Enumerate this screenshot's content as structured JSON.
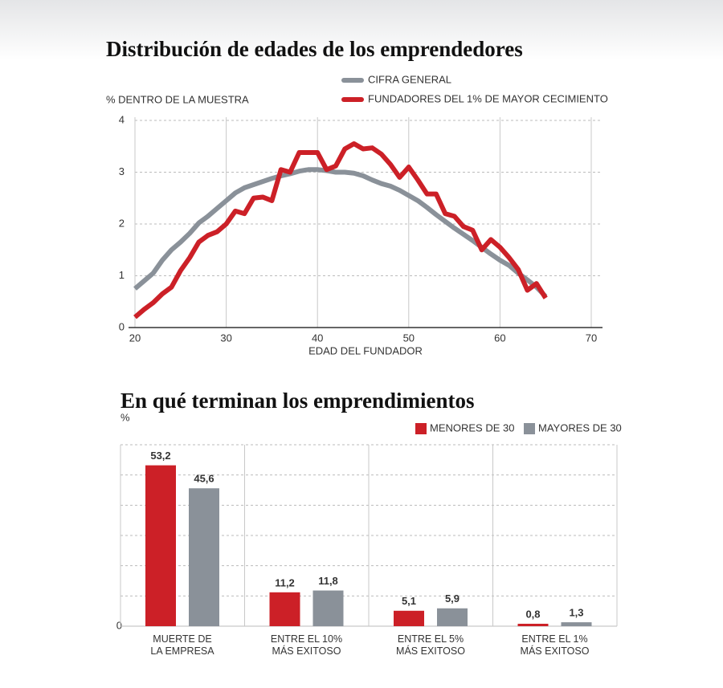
{
  "chart_data": [
    {
      "type": "line",
      "title": "Distribución de edades de los emprendedores",
      "y_label": "% DENTRO DE LA MUESTRA",
      "x_label": "EDAD DEL FUNDADOR",
      "x": [
        20,
        21,
        22,
        23,
        24,
        25,
        26,
        27,
        28,
        29,
        30,
        31,
        32,
        33,
        34,
        35,
        36,
        37,
        38,
        39,
        40,
        41,
        42,
        43,
        44,
        45,
        46,
        47,
        48,
        49,
        50,
        51,
        52,
        53,
        54,
        55,
        56,
        57,
        58,
        59,
        60,
        61,
        62,
        63,
        64,
        65
      ],
      "series": [
        {
          "name": "CIFRA GENERAL",
          "color": "#8a9199",
          "values": [
            0.75,
            0.9,
            1.05,
            1.3,
            1.5,
            1.65,
            1.82,
            2.02,
            2.15,
            2.3,
            2.45,
            2.6,
            2.7,
            2.76,
            2.82,
            2.88,
            2.93,
            2.97,
            3.02,
            3.05,
            3.05,
            3.03,
            3.0,
            3.0,
            2.98,
            2.93,
            2.85,
            2.78,
            2.73,
            2.65,
            2.55,
            2.45,
            2.32,
            2.18,
            2.05,
            1.92,
            1.8,
            1.68,
            1.55,
            1.42,
            1.3,
            1.2,
            1.05,
            0.92,
            0.78,
            0.6
          ]
        },
        {
          "name": "FUNDADORES DEL 1% DE MAYOR CECIMIENTO",
          "color": "#cc2027",
          "values": [
            0.2,
            0.35,
            0.48,
            0.65,
            0.78,
            1.1,
            1.35,
            1.65,
            1.78,
            1.85,
            2.0,
            2.25,
            2.2,
            2.5,
            2.52,
            2.45,
            3.05,
            3.0,
            3.38,
            3.38,
            3.38,
            3.05,
            3.12,
            3.45,
            3.55,
            3.45,
            3.47,
            3.35,
            3.15,
            2.9,
            3.1,
            2.85,
            2.58,
            2.58,
            2.2,
            2.15,
            1.95,
            1.88,
            1.5,
            1.7,
            1.55,
            1.35,
            1.12,
            0.72,
            0.85,
            0.57
          ]
        }
      ],
      "xlim": [
        20,
        70
      ],
      "xticks": [
        20,
        30,
        40,
        50,
        60,
        70
      ],
      "ylim": [
        0,
        4
      ],
      "yticks": [
        0,
        1,
        2,
        3,
        4
      ],
      "grid": true
    },
    {
      "type": "bar",
      "title": "En qué terminan los emprendimientos",
      "y_label": "%",
      "categories": [
        "MUERTE DE\nLA EMPRESA",
        "ENTRE EL 10%\nMÁS EXITOSO",
        "ENTRE EL 5%\nMÁS EXITOSO",
        "ENTRE EL 1%\nMÁS EXITOSO"
      ],
      "series": [
        {
          "name": "MENORES DE 30",
          "color": "#cc2027",
          "values": [
            53.2,
            11.2,
            5.1,
            0.8
          ],
          "value_labels": [
            "53,2",
            "11,2",
            "5,1",
            "0,8"
          ]
        },
        {
          "name": "MAYORES DE 30",
          "color": "#8a9199",
          "values": [
            45.6,
            11.8,
            5.9,
            1.3
          ],
          "value_labels": [
            "45,6",
            "11,8",
            "5,9",
            "1,3"
          ]
        }
      ],
      "ylim": [
        0,
        60
      ],
      "yticks": [
        0
      ],
      "ygrid": [
        10,
        20,
        30,
        40,
        50,
        60
      ]
    }
  ]
}
